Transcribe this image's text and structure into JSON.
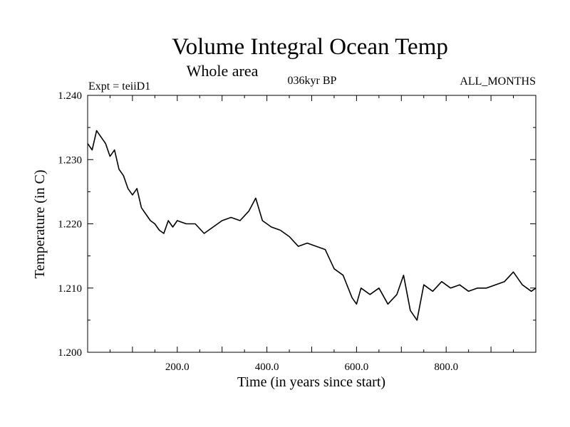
{
  "chart_data": {
    "type": "line",
    "title": "Volume Integral Ocean Temp",
    "subtitle": "Whole area",
    "experiment_label": "Expt = teiiD1",
    "period_label": "036kyr BP",
    "months_label": "ALL_MONTHS",
    "xlabel": "Time (in years since start)",
    "ylabel": "Temperature (in C)",
    "xlim": [
      0,
      1000
    ],
    "ylim": [
      1.2,
      1.24
    ],
    "x_tick_labels": [
      "200.0",
      "400.0",
      "600.0",
      "800.0"
    ],
    "y_tick_labels": [
      "1.200",
      "1.210",
      "1.220",
      "1.230",
      "1.240"
    ],
    "grid": false,
    "line_color": "#000000",
    "series": [
      {
        "x": [
          0,
          10,
          20,
          30,
          40,
          50,
          60,
          70,
          80,
          90,
          100,
          110,
          120,
          130,
          140,
          150,
          160,
          170,
          180,
          190,
          200,
          220,
          240,
          260,
          280,
          300,
          320,
          340,
          360,
          375,
          390,
          410,
          430,
          450,
          470,
          490,
          510,
          530,
          550,
          570,
          590,
          600,
          610,
          630,
          650,
          670,
          690,
          705,
          720,
          735,
          750,
          770,
          790,
          810,
          830,
          850,
          870,
          890,
          910,
          930,
          950,
          970,
          990,
          1000
        ],
        "y": [
          1.2325,
          1.2315,
          1.2345,
          1.2335,
          1.2325,
          1.2305,
          1.2315,
          1.2285,
          1.2275,
          1.2255,
          1.2245,
          1.2255,
          1.2225,
          1.2215,
          1.2205,
          1.22,
          1.219,
          1.2185,
          1.2205,
          1.2195,
          1.2205,
          1.22,
          1.22,
          1.2185,
          1.2195,
          1.2205,
          1.221,
          1.2205,
          1.222,
          1.224,
          1.2205,
          1.2195,
          1.219,
          1.218,
          1.2165,
          1.217,
          1.2165,
          1.216,
          1.213,
          1.212,
          1.2085,
          1.2075,
          1.21,
          1.209,
          1.21,
          1.2075,
          1.209,
          1.212,
          1.2065,
          1.205,
          1.2105,
          1.2095,
          1.211,
          1.21,
          1.2105,
          1.2095,
          1.21,
          1.21,
          1.2105,
          1.211,
          1.2125,
          1.2105,
          1.2095,
          1.21
        ]
      }
    ]
  }
}
